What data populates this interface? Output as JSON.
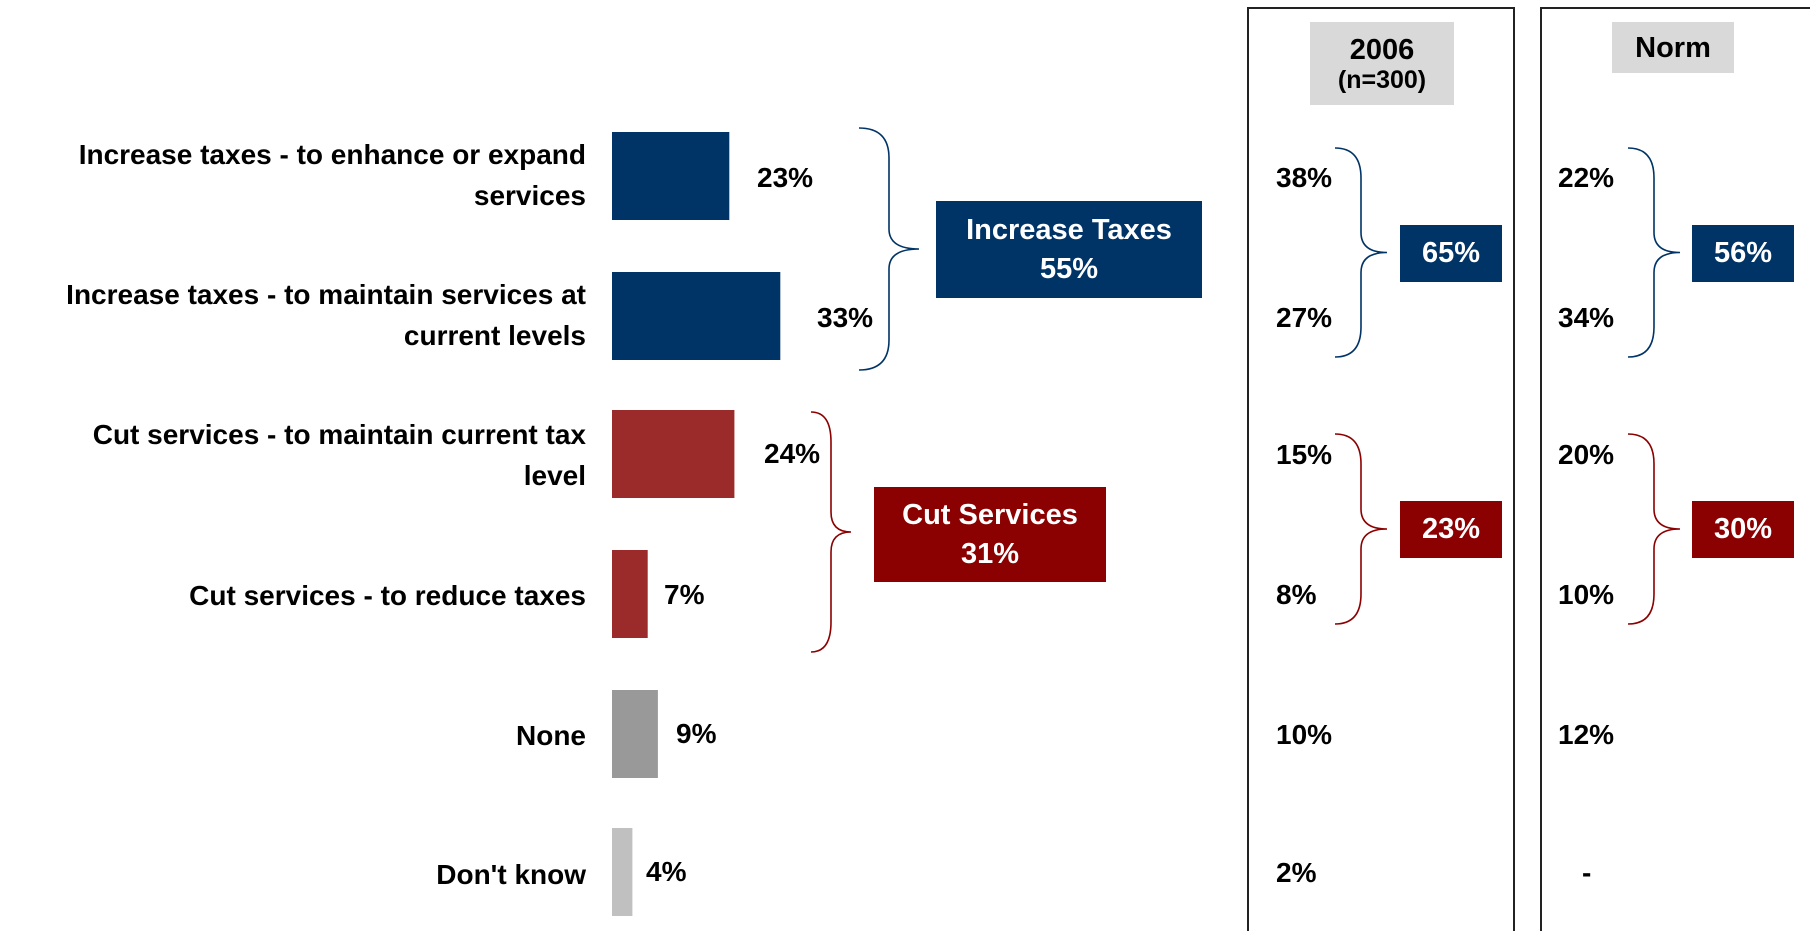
{
  "chart_data": {
    "type": "bar",
    "orientation": "horizontal",
    "categories": [
      {
        "lines": [
          "Increase taxes - to enhance or expand",
          "services"
        ]
      },
      {
        "lines": [
          "Increase taxes - to maintain services at",
          "current levels"
        ]
      },
      {
        "lines": [
          "Cut services - to maintain current tax",
          "level"
        ]
      },
      {
        "lines": [
          "Cut services - to reduce taxes"
        ]
      },
      {
        "lines": [
          "None"
        ]
      },
      {
        "lines": [
          "Don't know"
        ]
      }
    ],
    "values": [
      23,
      33,
      24,
      7,
      9,
      4
    ],
    "value_labels": [
      "23%",
      "33%",
      "24%",
      "7%",
      "9%",
      "4%"
    ],
    "bar_colors": [
      "#003366",
      "#003366",
      "#9b2a2a",
      "#9b2a2a",
      "#999999",
      "#c0c0c0"
    ],
    "groups": [
      {
        "label": "Increase Taxes",
        "value": "55%",
        "color": "#003366"
      },
      {
        "label": "Cut Services",
        "value": "31%",
        "color": "#8b0000"
      }
    ],
    "comparison_columns": [
      {
        "header": "2006",
        "subheader": "(n=300)",
        "values": [
          "38%",
          "27%",
          "15%",
          "8%",
          "10%",
          "2%"
        ],
        "groups": [
          "65%",
          "23%"
        ]
      },
      {
        "header": "Norm",
        "subheader": "",
        "values": [
          "22%",
          "34%",
          "20%",
          "10%",
          "12%",
          "-"
        ],
        "groups": [
          "56%",
          "30%"
        ]
      }
    ]
  },
  "colors": {
    "increase": "#003366",
    "cut": "#8b0000"
  }
}
